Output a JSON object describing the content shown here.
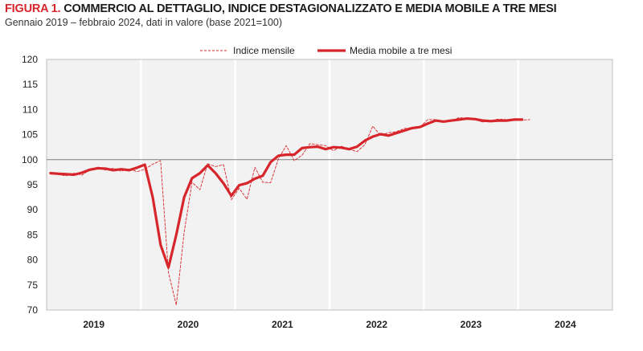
{
  "header": {
    "figure_label": "FIGURA 1.",
    "title": "COMMERCIO AL DETTAGLIO, INDICE DESTAGIONALIZZATO E MEDIA MOBILE A TRE MESI",
    "subtitle": "Gennaio 2019 – febbraio 2024, dati in valore (base 2021=100)"
  },
  "colors": {
    "series": "#d7262b",
    "frame": "#bfbfbf",
    "baseline": "#808080",
    "background": "#f2f2f2",
    "separator": "#ffffff"
  },
  "chart_data": {
    "type": "line",
    "title": "COMMERCIO AL DETTAGLIO, INDICE DESTAGIONALIZZATO E MEDIA MOBILE A TRE MESI",
    "subtitle": "Gennaio 2019 – febbraio 2024, dati in valore (base 2021=100)",
    "x_axis": {
      "unit": "month",
      "start": "2019-01",
      "end": "2024-12",
      "tick_labels": [
        "2019",
        "2020",
        "2021",
        "2022",
        "2023",
        "2024"
      ]
    },
    "ylim": [
      70,
      120
    ],
    "yticks": [
      70,
      75,
      80,
      85,
      90,
      95,
      100,
      105,
      110,
      115,
      120
    ],
    "reference_line": 100,
    "legend_position": "top-center",
    "series": [
      {
        "name": "Indice mensile",
        "style": "dashed-thin",
        "start": "2019-01",
        "values": [
          97.5,
          97.0,
          96.8,
          97.3,
          96.9,
          98.0,
          98.5,
          97.9,
          98.3,
          97.7,
          98.2,
          97.6,
          98.1,
          99.1,
          99.8,
          77.5,
          71.0,
          85.5,
          95.5,
          94.0,
          99.2,
          98.6,
          99.0,
          92.0,
          94.3,
          92.1,
          98.5,
          95.5,
          95.4,
          100.2,
          102.8,
          99.8,
          100.9,
          103.2,
          103.0,
          102.8,
          101.8,
          102.7,
          102.1,
          101.6,
          103.0,
          106.7,
          104.8,
          105.4,
          105.6,
          106.2,
          106.4,
          106.5,
          108.0,
          108.0,
          107.6,
          107.8,
          108.4,
          108.2,
          108.0,
          107.5,
          107.8,
          108.1,
          108.0,
          108.0,
          107.9,
          108.0
        ]
      },
      {
        "name": "Media mobile a tre mesi",
        "style": "solid-thick",
        "start": "2019-01",
        "values": [
          97.3,
          97.2,
          97.1,
          97.0,
          97.4,
          98.0,
          98.3,
          98.2,
          97.9,
          98.1,
          97.9,
          98.4,
          99.0,
          92.5,
          83.0,
          78.5,
          85.0,
          92.5,
          96.3,
          97.3,
          98.9,
          97.3,
          95.3,
          92.8,
          94.9,
          95.3,
          96.2,
          96.8,
          99.5,
          100.8,
          101.0,
          101.0,
          102.3,
          102.5,
          102.6,
          102.1,
          102.5,
          102.4,
          102.1,
          102.6,
          103.8,
          104.6,
          105.1,
          104.8,
          105.3,
          105.8,
          106.3,
          106.5,
          107.2,
          107.8,
          107.6,
          107.8,
          108.0,
          108.2,
          108.1,
          107.8,
          107.7,
          107.8,
          107.8,
          108.0,
          108.0
        ]
      }
    ]
  }
}
